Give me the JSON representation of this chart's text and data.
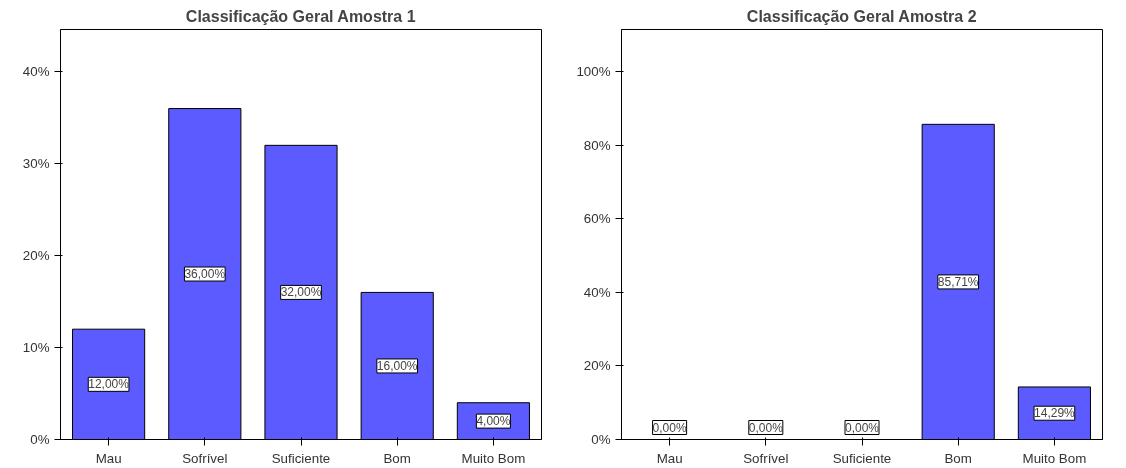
{
  "chart_data": [
    {
      "type": "bar",
      "title": "Classificação Geral Amostra 1",
      "categories": [
        "Mau",
        "Sofrível",
        "Suficiente",
        "Bom",
        "Muito Bom"
      ],
      "values": [
        12,
        36,
        32,
        16,
        4
      ],
      "color": "#5b5bff",
      "value_labels": [
        "12,00%",
        "36,00%",
        "32,00%",
        "16,00%",
        "4,00%"
      ],
      "ylim": [
        0,
        44.6
      ],
      "yticks": [
        {
          "value": 0,
          "label": "0%"
        },
        {
          "value": 10,
          "label": "10%"
        },
        {
          "value": 20,
          "label": "20%"
        },
        {
          "value": 30,
          "label": "30%"
        },
        {
          "value": 40,
          "label": "40%"
        }
      ],
      "grid": false
    },
    {
      "type": "bar",
      "title": "Classificação Geral Amostra 2",
      "categories": [
        "Mau",
        "Sofrível",
        "Suficiente",
        "Bom",
        "Muito Bom"
      ],
      "values": [
        0,
        0,
        0,
        85.71,
        14.29
      ],
      "color": "#5b5bff",
      "value_labels": [
        "0,00%",
        "0,00%",
        "0,00%",
        "85,71%",
        "14,29%"
      ],
      "ylim": [
        0,
        111.5
      ],
      "yticks": [
        {
          "value": 0,
          "label": "0%"
        },
        {
          "value": 20,
          "label": "20%"
        },
        {
          "value": 40,
          "label": "40%"
        },
        {
          "value": 60,
          "label": "60%"
        },
        {
          "value": 80,
          "label": "80%"
        },
        {
          "value": 100,
          "label": "100%"
        }
      ],
      "grid": false
    }
  ]
}
